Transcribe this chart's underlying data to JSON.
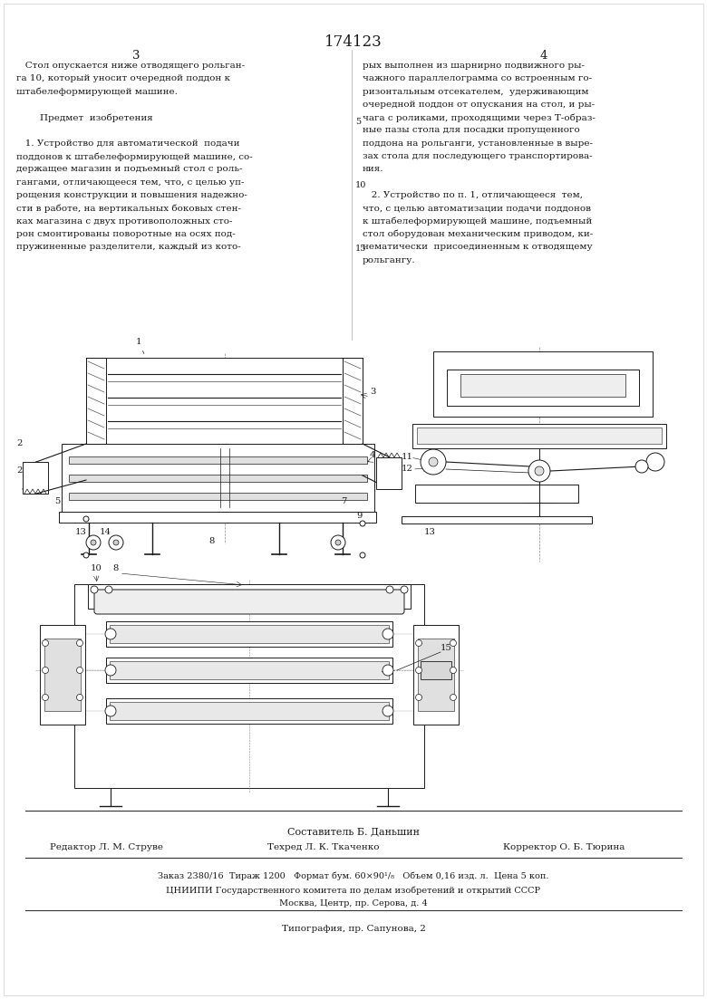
{
  "bg_color": "#ffffff",
  "page_color": "#ffffff",
  "title_number": "174123",
  "col_left_number": "3",
  "col_right_number": "4",
  "col_left_text_lines": [
    "   Стол опускается ниже отводящего рольган-",
    "га 10, который уносит очередной поддон к",
    "штабелеформирующей машине.",
    "",
    "        Предмет  изобретения",
    "",
    "   1. Устройство для автоматической  подачи",
    "поддонов к штабелеформирующей машине, со-",
    "держащее магазин и подъемный стол с роль-",
    "гангами, отличающееся тем, что, с целью уп-",
    "рощения конструкции и повышения надежно-",
    "сти в работе, на вертикальных боковых стен-",
    "ках магазина с двух противоположных сто-",
    "рон смонтированы поворотные на осях под-",
    "пружиненные разделители, каждый из кото-"
  ],
  "col_right_text_lines": [
    "рых выполнен из шарнирно подвижного ры-",
    "чажного параллелограмма со встроенным го-",
    "ризонтальным отсекателем,  удерживающим",
    "очередной поддон от опускания на стол, и ры-",
    "чага с роликами, проходящими через Т-образ-",
    "ные пазы стола для посадки пропущенного",
    "поддона на рольганги, установленные в выре-",
    "зах стола для последующего транспортирова-",
    "ния.",
    "",
    "   2. Устройство по п. 1, отличающееся  тем,",
    "что, с целью автоматизации подачи поддонов",
    "к штабелеформирующей машине, подъемный",
    "стол оборудован механическим приводом, ки-",
    "нематически  присоединенным к отводящему",
    "рольгангу."
  ],
  "footer_author": "Составитель Б. Даньшин",
  "footer_editor": "Редактор Л. М. Струве",
  "footer_tech": "Техред Л. К. Ткаченко",
  "footer_corrector": "Корректор О. Б. Тюрина",
  "footer_order": "Заказ 2380/16  Тираж 1200   Формат бум. 60×90¹/₈   Объем 0,16 изд. л.  Цена 5 коп.",
  "footer_org": "ЦНИИПИ Государственного комитета по делам изобретений и открытий СССР",
  "footer_addr": "Москва, Центр, пр. Серова, д. 4",
  "footer_print": "Типография, пр. Сапунова, 2",
  "text_color": "#1a1a1a",
  "line_color": "#333333"
}
